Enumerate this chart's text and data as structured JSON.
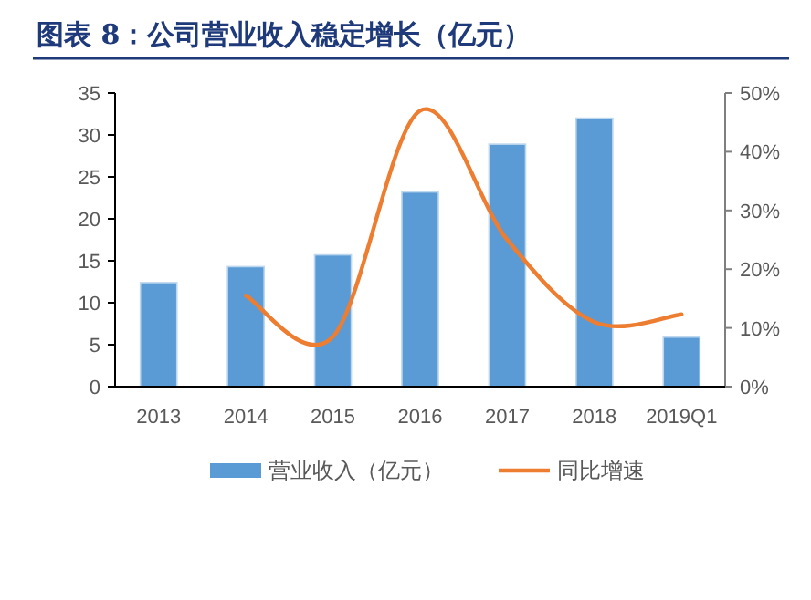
{
  "chart_data": {
    "type": "bar",
    "title": "图表 8：公司营业收入稳定增长（亿元）",
    "categories": [
      "2013",
      "2014",
      "2015",
      "2016",
      "2017",
      "2018",
      "2019Q1"
    ],
    "series": [
      {
        "name": "营业收入（亿元）",
        "color": "#5b9bd5",
        "values": [
          12.4,
          14.3,
          15.7,
          23.2,
          28.9,
          32.0,
          5.9
        ]
      },
      {
        "name": "同比增速",
        "type": "line",
        "axis": "y2",
        "color": "#ed7d31",
        "values": [
          null,
          15.5,
          8.5,
          47,
          25,
          11,
          12.3
        ]
      }
    ],
    "ylim": [
      0,
      35
    ],
    "yticks": [
      0,
      5,
      10,
      15,
      20,
      25,
      30,
      35
    ],
    "y2lim": [
      0,
      50
    ],
    "y2ticks": [
      {
        "value": 0,
        "label": "0%"
      },
      {
        "value": 10,
        "label": "10%"
      },
      {
        "value": 20,
        "label": "20%"
      },
      {
        "value": 30,
        "label": "30%"
      },
      {
        "value": 40,
        "label": "40%"
      },
      {
        "value": 50,
        "label": "50%"
      }
    ],
    "grid": false,
    "legend": "bottom",
    "marker": "none",
    "line_style": "solid"
  }
}
